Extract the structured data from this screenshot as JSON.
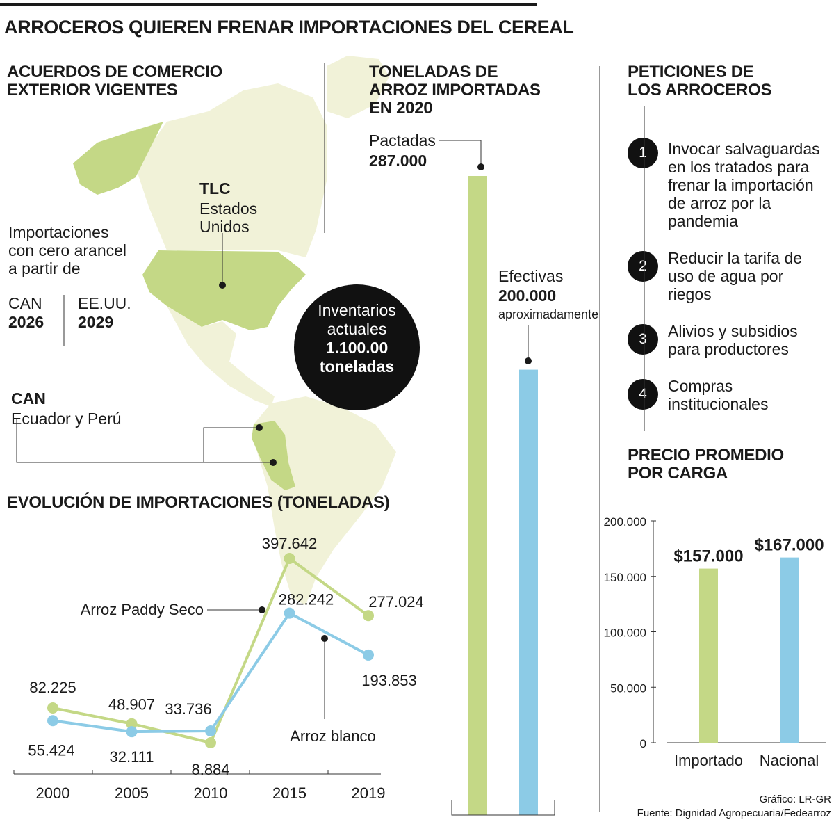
{
  "title": "ARROCEROS QUIEREN FRENAR IMPORTACIONES DEL CEREAL",
  "colors": {
    "green": "#c4d886",
    "blue": "#8ccbe6",
    "map": "#f1f2d8",
    "mapdark": "#c4d886",
    "ink": "#1a1a1a"
  },
  "map_section": {
    "heading_1": "ACUERDOS DE COMERCIO",
    "heading_2": "EXTERIOR VIGENTES",
    "tlc_title": "TLC",
    "tlc_line1": "Estados",
    "tlc_line2": "Unidos",
    "zero_1": "Importaciones",
    "zero_2": "con cero arancel",
    "zero_3": "a partir de",
    "can_label": "CAN",
    "can_year": "2026",
    "us_label": "EE.UU.",
    "us_year": "2029",
    "can_title": "CAN",
    "can_members": "Ecuador y Perú",
    "inventory_1": "Inventarios",
    "inventory_2": "actuales",
    "inventory_3": "1.100.00",
    "inventory_4": "toneladas"
  },
  "imports_2020": {
    "heading_1": "TONELADAS DE",
    "heading_2": "ARROZ IMPORTADAS",
    "heading_3": "EN 2020",
    "pactadas_label": "Pactadas",
    "pactadas_value": "287.000",
    "efectivas_label": "Efectivas",
    "efectivas_value": "200.000",
    "efectivas_note": "aproximadamente"
  },
  "petitions": {
    "heading_1": "PETICIONES DE",
    "heading_2": "LOS ARROCEROS",
    "items": [
      {
        "num": "1",
        "l1": "Invocar salvaguardas",
        "l2": "en los tratados para",
        "l3": "frenar la importación",
        "l4": "de arroz por la",
        "l5": "pandemia"
      },
      {
        "num": "2",
        "l1": "Reducir la tarifa de",
        "l2": "uso de agua por",
        "l3": "riegos"
      },
      {
        "num": "3",
        "l1": "Alivios y subsidios",
        "l2": "para productores"
      },
      {
        "num": "4",
        "l1": "Compras",
        "l2": "institucionales"
      }
    ]
  },
  "price_heading_1": "PRECIO PROMEDIO",
  "price_heading_2": "POR CARGA",
  "evolution_heading": "EVOLUCIÓN DE IMPORTACIONES (TONELADAS)",
  "credit": "Gráfico: LR-GR",
  "source": "Fuente: Dignidad Agropecuaria/Fedearroz",
  "chart_data": [
    {
      "type": "line",
      "title": "EVOLUCIÓN DE IMPORTACIONES (TONELADAS)",
      "x": [
        "2000",
        "2005",
        "2010",
        "2015",
        "2019"
      ],
      "series": [
        {
          "name": "Arroz Paddy Seco",
          "color": "#c4d886",
          "values": [
            82225,
            48907,
            8884,
            397642,
            277024
          ],
          "labels": [
            "82.225",
            "48.907",
            "8.884",
            "397.642",
            "277.024"
          ]
        },
        {
          "name": "Arroz blanco",
          "color": "#8ccbe6",
          "values": [
            55424,
            32111,
            33736,
            282242,
            193853
          ],
          "labels": [
            "55.424",
            "32.111",
            "33.736",
            "282.242",
            "193.853"
          ]
        }
      ],
      "ylim": [
        0,
        420000
      ]
    },
    {
      "type": "bar",
      "title": "TONELADAS DE ARROZ IMPORTADAS EN 2020",
      "categories": [
        "Pactadas",
        "Efectivas"
      ],
      "values": [
        287000,
        200000
      ],
      "colors": [
        "#c4d886",
        "#8ccbe6"
      ],
      "ylim": [
        0,
        287000
      ]
    },
    {
      "type": "bar",
      "title": "PRECIO PROMEDIO POR CARGA",
      "categories": [
        "Importado",
        "Nacional"
      ],
      "values": [
        157000,
        167000
      ],
      "value_labels": [
        "$157.000",
        "$167.000"
      ],
      "colors": [
        "#c4d886",
        "#8ccbe6"
      ],
      "ylim": [
        0,
        200000
      ],
      "yticks": [
        0,
        50000,
        100000,
        150000,
        200000
      ],
      "ytick_labels": [
        "0",
        "50.000",
        "100.000",
        "150.000",
        "200.000"
      ]
    }
  ]
}
